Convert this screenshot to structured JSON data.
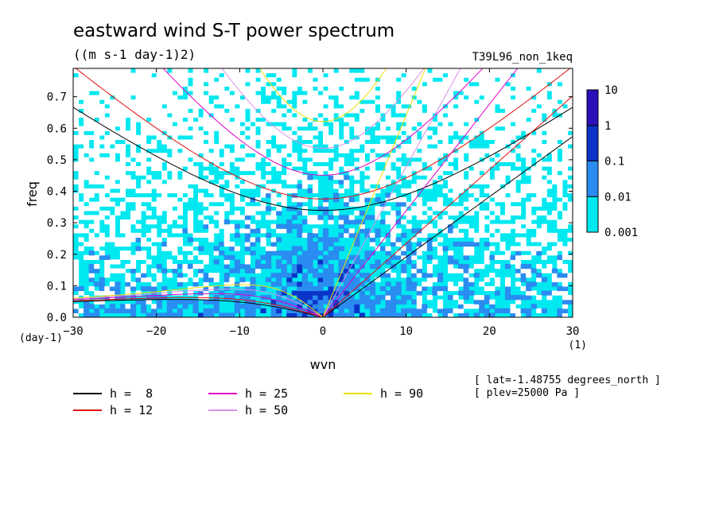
{
  "chart_data": {
    "type": "heatmap",
    "title": "eastward wind S-T power spectrum",
    "subtitle": "((m s-1 day-1)2)",
    "run_label": "T39L96_non_1keq",
    "xlabel": "wvn",
    "ylabel": "freq",
    "x_unit": "(1)",
    "y_unit": "(day-1)",
    "xlim": [
      -30,
      30
    ],
    "ylim": [
      0,
      0.79
    ],
    "x_ticks": [
      "-30",
      "-20",
      "-10",
      "0",
      "10",
      "20",
      "30"
    ],
    "y_ticks": [
      "0.0",
      "0.1",
      "0.2",
      "0.3",
      "0.4",
      "0.5",
      "0.6",
      "0.7"
    ],
    "colorbar": {
      "scale": "log",
      "levels": [
        "0.001",
        "0.01",
        "0.1",
        "1",
        "10"
      ],
      "colors": [
        "#00e8f0",
        "#2a8cf0",
        "#0a34c8",
        "#2a10b8"
      ],
      "below_color": "#ffffff"
    },
    "dispersion_curves": [
      {
        "label": "h =  8",
        "h": 8,
        "color": "#000000"
      },
      {
        "label": "h = 12",
        "h": 12,
        "color": "#e01010"
      },
      {
        "label": "h = 25",
        "h": 25,
        "color": "#e000c8"
      },
      {
        "label": "h = 50",
        "h": 50,
        "color": "#d890e8"
      },
      {
        "label": "h = 90",
        "h": 90,
        "color": "#f0e000"
      }
    ],
    "annotations": [
      "[ lat=-1.48755 degrees_north ]",
      "[ plev=25000 Pa ]"
    ]
  }
}
